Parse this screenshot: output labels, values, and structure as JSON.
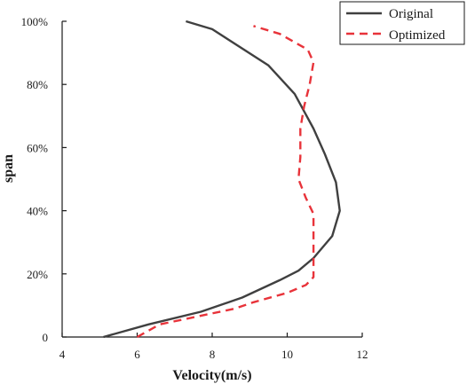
{
  "chart_data": {
    "type": "line",
    "title": "",
    "xlabel": "Velocity(m/s)",
    "ylabel": "span",
    "xlim": [
      4,
      12
    ],
    "ylim": [
      0,
      100
    ],
    "x_ticks": [
      4,
      6,
      8,
      10,
      12
    ],
    "x_tick_labels": [
      "4",
      "6",
      "8",
      "10",
      "12"
    ],
    "y_ticks": [
      0,
      20,
      40,
      60,
      80,
      100
    ],
    "y_tick_labels": [
      "0",
      "20%",
      "40%",
      "60%",
      "80%",
      "100%"
    ],
    "grid": false,
    "legend_position": "top-right",
    "series": [
      {
        "name": "Original",
        "color": "#404040",
        "line_style": "solid",
        "points": [
          [
            5.1,
            0
          ],
          [
            6.3,
            4
          ],
          [
            7.7,
            8
          ],
          [
            8.8,
            12.5
          ],
          [
            9.8,
            18
          ],
          [
            10.3,
            21
          ],
          [
            10.7,
            25
          ],
          [
            11.2,
            32
          ],
          [
            11.4,
            40
          ],
          [
            11.3,
            49
          ],
          [
            11.0,
            58
          ],
          [
            10.7,
            66
          ],
          [
            10.2,
            77
          ],
          [
            9.5,
            86
          ],
          [
            8.0,
            97.5
          ],
          [
            7.3,
            100
          ]
        ]
      },
      {
        "name": "Optimized",
        "color": "#e8333a",
        "line_style": "dashed",
        "points": [
          [
            6.0,
            0
          ],
          [
            6.6,
            4
          ],
          [
            7.6,
            6.5
          ],
          [
            8.6,
            9
          ],
          [
            9.1,
            11
          ],
          [
            10.0,
            14
          ],
          [
            10.5,
            16.5
          ],
          [
            10.7,
            19
          ],
          [
            10.7,
            25
          ],
          [
            10.7,
            32
          ],
          [
            10.7,
            39
          ],
          [
            10.5,
            44
          ],
          [
            10.3,
            50
          ],
          [
            10.35,
            57
          ],
          [
            10.35,
            66
          ],
          [
            10.45,
            73
          ],
          [
            10.6,
            80
          ],
          [
            10.7,
            87
          ],
          [
            10.55,
            91
          ],
          [
            9.8,
            96
          ],
          [
            9.1,
            98.5
          ]
        ]
      }
    ]
  }
}
